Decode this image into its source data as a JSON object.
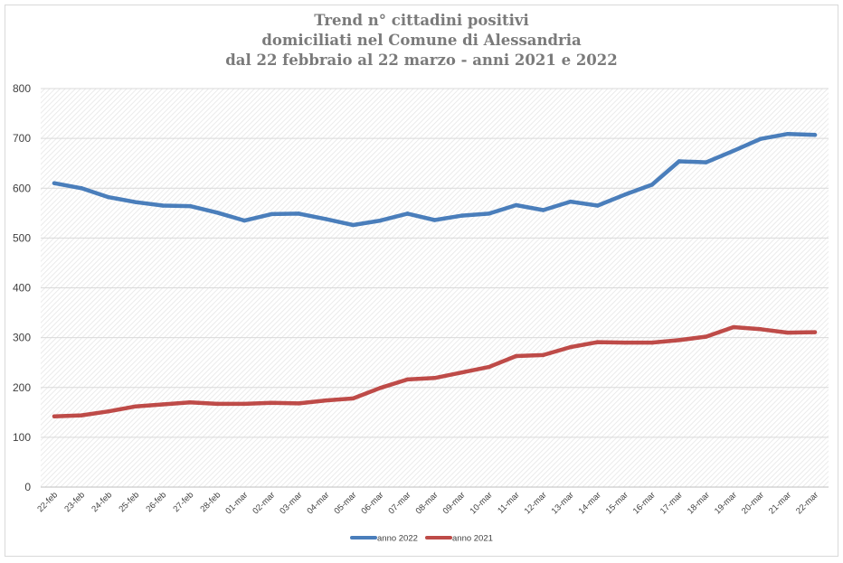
{
  "chart_data": {
    "type": "line",
    "title_lines": [
      "Trend n° cittadini positivi",
      "domiciliati nel Comune di Alessandria",
      "dal 22 febbraio al 22 marzo - anni 2021 e 2022"
    ],
    "xlabel": "",
    "ylabel": "",
    "ylim": [
      0,
      800
    ],
    "yticks": [
      0,
      100,
      200,
      300,
      400,
      500,
      600,
      700,
      800
    ],
    "grid": true,
    "legend_position": "bottom",
    "categories": [
      "22-feb",
      "23-feb",
      "24-feb",
      "25-feb",
      "26-feb",
      "27-feb",
      "28-feb",
      "01-mar",
      "02-mar",
      "03-mar",
      "04-mar",
      "05-mar",
      "06-mar",
      "07-mar",
      "08-mar",
      "09-mar",
      "10-mar",
      "11-mar",
      "12-mar",
      "13-mar",
      "14-mar",
      "15-mar",
      "16-mar",
      "17-mar",
      "18-mar",
      "19-mar",
      "20-mar",
      "21-mar",
      "22-mar"
    ],
    "series": [
      {
        "name": "anno 2022",
        "color": "#4a7ebb",
        "values": [
          610,
          600,
          582,
          572,
          565,
          564,
          551,
          535,
          548,
          549,
          538,
          526,
          535,
          549,
          536,
          545,
          549,
          566,
          556,
          573,
          565,
          587,
          607,
          654,
          652,
          675,
          699,
          709,
          707
        ]
      },
      {
        "name": "anno 2021",
        "color": "#be4b48",
        "values": [
          142,
          144,
          152,
          162,
          166,
          170,
          167,
          167,
          169,
          168,
          174,
          178,
          199,
          216,
          219,
          230,
          241,
          263,
          265,
          281,
          291,
          290,
          290,
          295,
          302,
          321,
          317,
          310,
          311
        ]
      }
    ]
  }
}
